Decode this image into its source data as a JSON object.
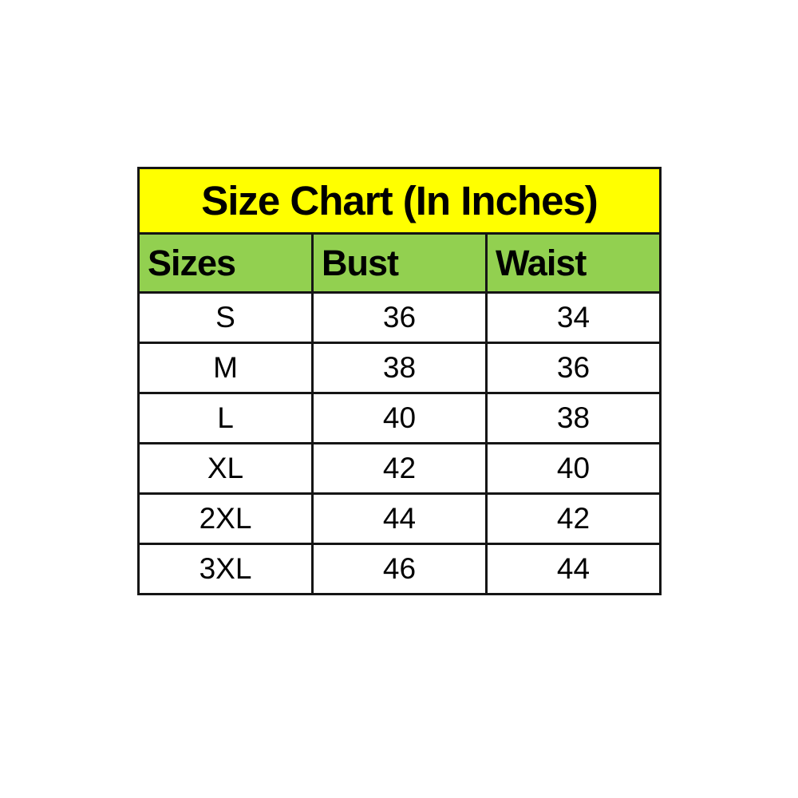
{
  "chart_data": {
    "type": "table",
    "title": "Size Chart (In Inches)",
    "columns": [
      "Sizes",
      "Bust",
      "Waist"
    ],
    "rows": [
      [
        "S",
        "36",
        "34"
      ],
      [
        "M",
        "38",
        "36"
      ],
      [
        "L",
        "40",
        "38"
      ],
      [
        "XL",
        "42",
        "40"
      ],
      [
        "2XL",
        "44",
        "42"
      ],
      [
        "3XL",
        "46",
        "44"
      ]
    ]
  },
  "table": {
    "title": "Size Chart (In Inches)",
    "columns": {
      "sizes": "Sizes",
      "bust": "Bust",
      "waist": "Waist"
    }
  },
  "colors": {
    "title_bg": "#ffff00",
    "header_bg": "#92d050",
    "border": "#151515",
    "text": "#000000",
    "row_bg": "#ffffff",
    "page_bg": "#ffffff"
  }
}
